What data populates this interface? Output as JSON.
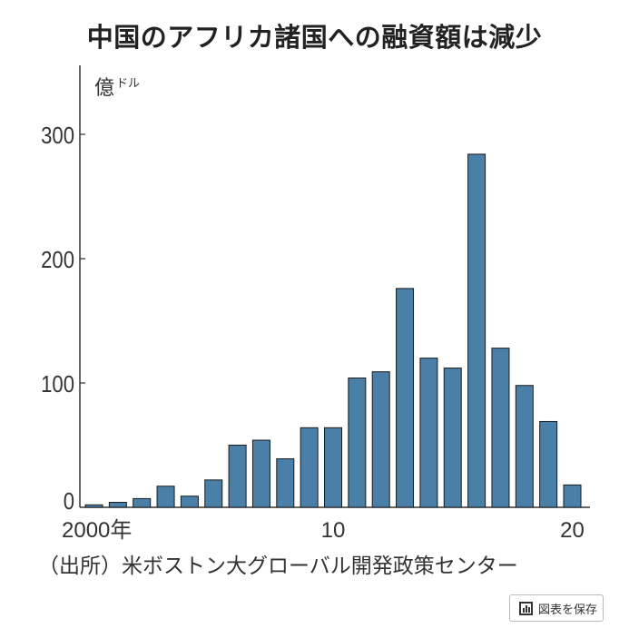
{
  "title": "中国のアフリカ諸国への融資額は減少",
  "source": "（出所）米ボストン大グローバル開発政策センター",
  "save_button": {
    "label": "図表を保存",
    "icon": "bar-chart-icon"
  },
  "chart_data": {
    "type": "bar",
    "title": "中国のアフリカ諸国への融資額は減少",
    "ylabel": "億ドル",
    "ylabel_main": "億",
    "ylabel_unit": "ドル",
    "xlabel": "",
    "x": [
      2000,
      2001,
      2002,
      2003,
      2004,
      2005,
      2006,
      2007,
      2008,
      2009,
      2010,
      2011,
      2012,
      2013,
      2014,
      2015,
      2016,
      2017,
      2018,
      2019,
      2020
    ],
    "values": [
      2,
      4,
      7,
      17,
      9,
      22,
      50,
      54,
      39,
      64,
      64,
      104,
      109,
      176,
      120,
      112,
      284,
      128,
      98,
      69,
      18
    ],
    "ylim": [
      0,
      355
    ],
    "yticks": [
      0,
      100,
      200,
      300
    ],
    "ytick_labels": [
      "0",
      "100",
      "200",
      "300"
    ],
    "xtick_labels": [
      {
        "at": 2000,
        "label": "2000年"
      },
      {
        "at": 2010,
        "label": "10"
      },
      {
        "at": 2020,
        "label": "20"
      }
    ],
    "bar_color": "#4a80a8",
    "grid": false,
    "legend": "none"
  }
}
